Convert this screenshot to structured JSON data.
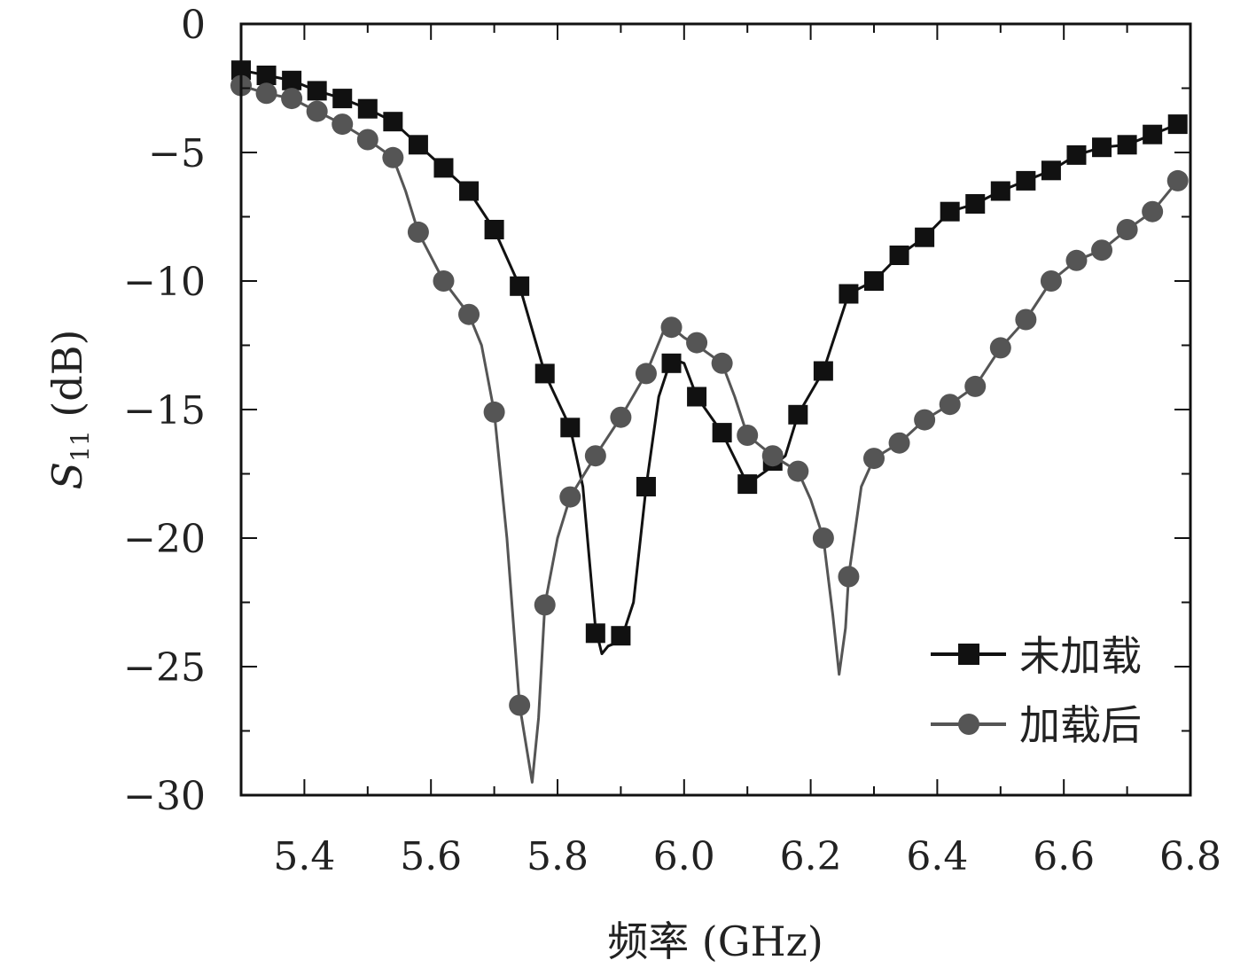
{
  "chart_data": {
    "type": "line",
    "title": "",
    "xlabel": "频率 (GHz)",
    "ylabel_symbol": "S",
    "ylabel_subscript": "11",
    "ylabel_unit": " (dB)",
    "xlim": [
      5.3,
      6.8
    ],
    "ylim": [
      -30,
      0
    ],
    "xticks": [
      5.4,
      5.6,
      5.8,
      6.0,
      6.2,
      6.4,
      6.6,
      6.8
    ],
    "xtick_labels": [
      "5.4",
      "5.6",
      "5.8",
      "6.0",
      "6.2",
      "6.4",
      "6.6",
      "6.8"
    ],
    "xminor_ticks": [
      5.3,
      5.5,
      5.7,
      5.9,
      6.1,
      6.3,
      6.5,
      6.7
    ],
    "yticks": [
      0,
      -5,
      -10,
      -15,
      -20,
      -25,
      -30
    ],
    "ytick_labels": [
      "0",
      "−5",
      "−10",
      "−15",
      "−20",
      "−25",
      "−30"
    ],
    "yminor_ticks": [
      -2.5,
      -7.5,
      -12.5,
      -17.5,
      -22.5,
      -27.5
    ],
    "legend_position": "lower-right",
    "series": [
      {
        "name": "未加载",
        "color": "#111111",
        "marker": "square",
        "curve": [
          [
            5.3,
            -1.8
          ],
          [
            5.34,
            -2.0
          ],
          [
            5.38,
            -2.2
          ],
          [
            5.42,
            -2.6
          ],
          [
            5.46,
            -2.9
          ],
          [
            5.5,
            -3.3
          ],
          [
            5.54,
            -3.8
          ],
          [
            5.58,
            -4.7
          ],
          [
            5.62,
            -5.6
          ],
          [
            5.66,
            -6.5
          ],
          [
            5.7,
            -8.0
          ],
          [
            5.74,
            -10.2
          ],
          [
            5.78,
            -13.6
          ],
          [
            5.82,
            -15.7
          ],
          [
            5.84,
            -18.0
          ],
          [
            5.86,
            -23.5
          ],
          [
            5.87,
            -24.5
          ],
          [
            5.88,
            -24.2
          ],
          [
            5.9,
            -24.0
          ],
          [
            5.92,
            -22.5
          ],
          [
            5.94,
            -18.0
          ],
          [
            5.96,
            -14.5
          ],
          [
            5.98,
            -13.0
          ],
          [
            6.0,
            -13.2
          ],
          [
            6.02,
            -14.5
          ],
          [
            6.06,
            -15.9
          ],
          [
            6.1,
            -17.9
          ],
          [
            6.14,
            -17.2
          ],
          [
            6.16,
            -16.8
          ],
          [
            6.18,
            -15.2
          ],
          [
            6.22,
            -13.5
          ],
          [
            6.26,
            -10.5
          ],
          [
            6.3,
            -10.0
          ],
          [
            6.34,
            -9.0
          ],
          [
            6.38,
            -8.3
          ],
          [
            6.42,
            -7.3
          ],
          [
            6.46,
            -7.0
          ],
          [
            6.5,
            -6.5
          ],
          [
            6.54,
            -6.1
          ],
          [
            6.58,
            -5.7
          ],
          [
            6.62,
            -5.1
          ],
          [
            6.66,
            -4.8
          ],
          [
            6.7,
            -4.7
          ],
          [
            6.74,
            -4.3
          ],
          [
            6.78,
            -3.9
          ]
        ],
        "markers": [
          [
            5.3,
            -1.8
          ],
          [
            5.34,
            -2.0
          ],
          [
            5.38,
            -2.2
          ],
          [
            5.42,
            -2.6
          ],
          [
            5.46,
            -2.9
          ],
          [
            5.5,
            -3.3
          ],
          [
            5.54,
            -3.8
          ],
          [
            5.58,
            -4.7
          ],
          [
            5.62,
            -5.6
          ],
          [
            5.66,
            -6.5
          ],
          [
            5.7,
            -8.0
          ],
          [
            5.74,
            -10.2
          ],
          [
            5.78,
            -13.6
          ],
          [
            5.82,
            -15.7
          ],
          [
            5.86,
            -23.7
          ],
          [
            5.9,
            -23.8
          ],
          [
            5.94,
            -18.0
          ],
          [
            5.98,
            -13.2
          ],
          [
            6.02,
            -14.5
          ],
          [
            6.06,
            -15.9
          ],
          [
            6.1,
            -17.9
          ],
          [
            6.14,
            -17.0
          ],
          [
            6.18,
            -15.2
          ],
          [
            6.22,
            -13.5
          ],
          [
            6.26,
            -10.5
          ],
          [
            6.3,
            -10.0
          ],
          [
            6.34,
            -9.0
          ],
          [
            6.38,
            -8.3
          ],
          [
            6.42,
            -7.3
          ],
          [
            6.46,
            -7.0
          ],
          [
            6.5,
            -6.5
          ],
          [
            6.54,
            -6.1
          ],
          [
            6.58,
            -5.7
          ],
          [
            6.62,
            -5.1
          ],
          [
            6.66,
            -4.8
          ],
          [
            6.7,
            -4.7
          ],
          [
            6.74,
            -4.3
          ],
          [
            6.78,
            -3.9
          ]
        ]
      },
      {
        "name": "加载后",
        "color": "#555555",
        "marker": "circle",
        "curve": [
          [
            5.3,
            -2.4
          ],
          [
            5.34,
            -2.7
          ],
          [
            5.38,
            -2.9
          ],
          [
            5.42,
            -3.4
          ],
          [
            5.46,
            -3.9
          ],
          [
            5.5,
            -4.5
          ],
          [
            5.54,
            -5.2
          ],
          [
            5.56,
            -6.5
          ],
          [
            5.58,
            -8.1
          ],
          [
            5.62,
            -10.0
          ],
          [
            5.66,
            -11.3
          ],
          [
            5.68,
            -12.5
          ],
          [
            5.7,
            -15.1
          ],
          [
            5.72,
            -20.0
          ],
          [
            5.74,
            -26.5
          ],
          [
            5.76,
            -29.5
          ],
          [
            5.77,
            -27.0
          ],
          [
            5.78,
            -22.6
          ],
          [
            5.8,
            -20.0
          ],
          [
            5.82,
            -18.4
          ],
          [
            5.86,
            -16.8
          ],
          [
            5.9,
            -15.3
          ],
          [
            5.94,
            -13.6
          ],
          [
            5.97,
            -11.8
          ],
          [
            5.98,
            -11.8
          ],
          [
            6.0,
            -12.2
          ],
          [
            6.02,
            -12.5
          ],
          [
            6.06,
            -13.2
          ],
          [
            6.08,
            -14.5
          ],
          [
            6.1,
            -16.0
          ],
          [
            6.14,
            -16.8
          ],
          [
            6.18,
            -17.4
          ],
          [
            6.2,
            -18.5
          ],
          [
            6.22,
            -20.0
          ],
          [
            6.235,
            -23.0
          ],
          [
            6.245,
            -25.3
          ],
          [
            6.255,
            -23.5
          ],
          [
            6.26,
            -21.5
          ],
          [
            6.28,
            -18.0
          ],
          [
            6.3,
            -16.9
          ],
          [
            6.34,
            -16.3
          ],
          [
            6.38,
            -15.4
          ],
          [
            6.42,
            -14.8
          ],
          [
            6.46,
            -14.1
          ],
          [
            6.5,
            -12.6
          ],
          [
            6.54,
            -11.5
          ],
          [
            6.58,
            -10.0
          ],
          [
            6.62,
            -9.2
          ],
          [
            6.66,
            -8.8
          ],
          [
            6.7,
            -8.0
          ],
          [
            6.74,
            -7.3
          ],
          [
            6.78,
            -6.1
          ]
        ],
        "markers": [
          [
            5.3,
            -2.4
          ],
          [
            5.34,
            -2.7
          ],
          [
            5.38,
            -2.9
          ],
          [
            5.42,
            -3.4
          ],
          [
            5.46,
            -3.9
          ],
          [
            5.5,
            -4.5
          ],
          [
            5.54,
            -5.2
          ],
          [
            5.58,
            -8.1
          ],
          [
            5.62,
            -10.0
          ],
          [
            5.66,
            -11.3
          ],
          [
            5.7,
            -15.1
          ],
          [
            5.74,
            -26.5
          ],
          [
            5.78,
            -22.6
          ],
          [
            5.82,
            -18.4
          ],
          [
            5.86,
            -16.8
          ],
          [
            5.9,
            -15.3
          ],
          [
            5.94,
            -13.6
          ],
          [
            5.98,
            -11.8
          ],
          [
            6.02,
            -12.4
          ],
          [
            6.06,
            -13.2
          ],
          [
            6.1,
            -16.0
          ],
          [
            6.14,
            -16.8
          ],
          [
            6.18,
            -17.4
          ],
          [
            6.22,
            -20.0
          ],
          [
            6.26,
            -21.5
          ],
          [
            6.3,
            -16.9
          ],
          [
            6.34,
            -16.3
          ],
          [
            6.38,
            -15.4
          ],
          [
            6.42,
            -14.8
          ],
          [
            6.46,
            -14.1
          ],
          [
            6.5,
            -12.6
          ],
          [
            6.54,
            -11.5
          ],
          [
            6.58,
            -10.0
          ],
          [
            6.62,
            -9.2
          ],
          [
            6.66,
            -8.8
          ],
          [
            6.7,
            -8.0
          ],
          [
            6.74,
            -7.3
          ],
          [
            6.78,
            -6.1
          ]
        ]
      }
    ]
  }
}
